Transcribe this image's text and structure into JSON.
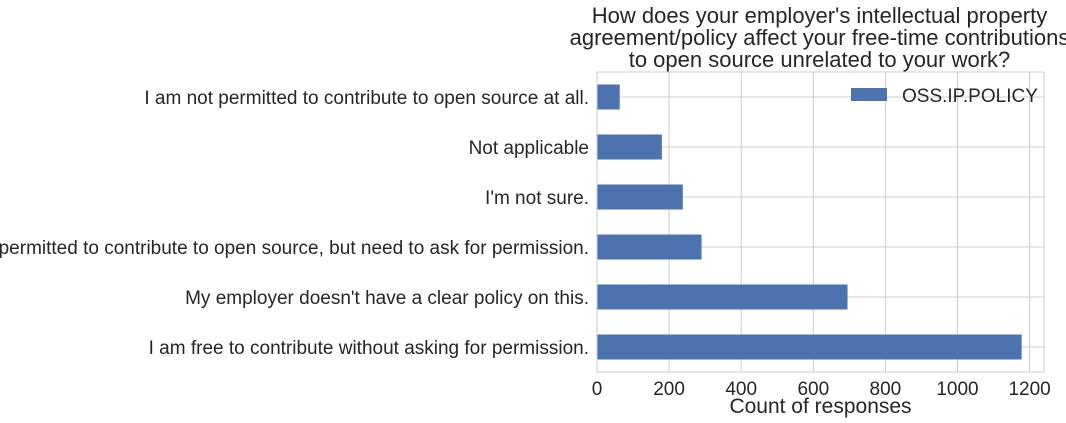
{
  "chart_data": {
    "type": "bar",
    "orientation": "horizontal",
    "title": "How does your employer's intellectual property agreement/policy affect your free-time contributions to open source unrelated to your work?",
    "title_lines": [
      "How does your employer's intellectual property",
      "agreement/policy affect your free-time contributions",
      "to open source unrelated to your work?"
    ],
    "categories": [
      "I am not permitted to contribute to open source at all.",
      "Not applicable",
      "I'm not sure.",
      "I am permitted to contribute to open source, but need to ask for permission.",
      "My employer doesn't have a clear policy on this.",
      "I am free to contribute without asking for permission."
    ],
    "series": [
      {
        "name": "OSS.IP.POLICY",
        "values": [
          63,
          180,
          238,
          290,
          695,
          1178
        ]
      }
    ],
    "xlabel": "Count of responses",
    "ylabel": "",
    "xlim": [
      0,
      1240
    ],
    "xticks": [
      0,
      200,
      400,
      600,
      800,
      1000,
      1200
    ],
    "grid": true,
    "legend_position": "top-right",
    "bar_color": "#4c72b0",
    "grid_color": "#cccccc"
  }
}
